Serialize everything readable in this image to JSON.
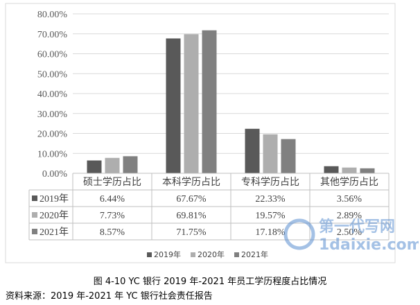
{
  "chart_data": {
    "type": "bar",
    "categories": [
      "硕士学历占比",
      "本科学历占比",
      "专科学历占比",
      "其他学历占比"
    ],
    "series": [
      {
        "name": "2019年",
        "color": "#595959",
        "values": [
          6.44,
          67.67,
          22.33,
          3.56
        ],
        "labels": [
          "6.44%",
          "67.67%",
          "22.33%",
          "3.56%"
        ]
      },
      {
        "name": "2020年",
        "color": "#aeaeae",
        "values": [
          7.73,
          69.81,
          19.57,
          2.89
        ],
        "labels": [
          "7.73%",
          "69.81%",
          "19.57%",
          "2.89%"
        ]
      },
      {
        "name": "2021年",
        "color": "#808080",
        "values": [
          8.57,
          71.75,
          17.18,
          2.5
        ],
        "labels": [
          "8.57%",
          "71.75%",
          "17.18%",
          "2.50%"
        ]
      }
    ],
    "ylim": [
      0,
      80
    ],
    "yticks": [
      "0.00%",
      "10.00%",
      "20.00%",
      "30.00%",
      "40.00%",
      "50.00%",
      "60.00%",
      "70.00%",
      "80.00%"
    ],
    "grid": true,
    "legend_placement": "bottom",
    "data_table": true
  },
  "caption": "图 4-10 YC 银行 2019 年-2021 年员工学历程度占比情况",
  "source": "资料来源：2019 年-2021 年 YC 银行社会责任报告",
  "watermark": {
    "text_top": "第一代写网",
    "text_bottom": "1daixie.com"
  }
}
